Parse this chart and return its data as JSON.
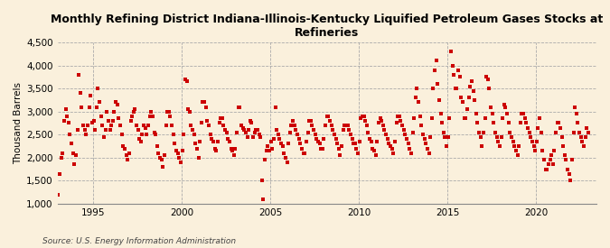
{
  "title": "Monthly Refining District Indiana-Illinois-Kentucky Liquified Petroleum Gases Stocks at\nRefineries",
  "ylabel": "Thousand Barrels",
  "source": "Source: U.S. Energy Information Administration",
  "ylim": [
    1000,
    4500
  ],
  "yticks": [
    1000,
    1500,
    2000,
    2500,
    3000,
    3500,
    4000,
    4500
  ],
  "background_color": "#FAF0DC",
  "marker_color": "#CC0000",
  "grid_color": "#AAAAAA",
  "x_years": [
    1993,
    1993,
    1993,
    1993,
    1993,
    1993,
    1993,
    1993,
    1993,
    1993,
    1993,
    1993,
    1994,
    1994,
    1994,
    1994,
    1994,
    1994,
    1994,
    1994,
    1994,
    1994,
    1994,
    1994,
    1995,
    1995,
    1995,
    1995,
    1995,
    1995,
    1995,
    1995,
    1995,
    1995,
    1995,
    1995,
    1996,
    1996,
    1996,
    1996,
    1996,
    1996,
    1996,
    1996,
    1996,
    1996,
    1996,
    1996,
    1997,
    1997,
    1997,
    1997,
    1997,
    1997,
    1997,
    1997,
    1997,
    1997,
    1997,
    1997,
    1998,
    1998,
    1998,
    1998,
    1998,
    1998,
    1998,
    1998,
    1998,
    1998,
    1998,
    1998,
    1999,
    1999,
    1999,
    1999,
    1999,
    1999,
    1999,
    1999,
    1999,
    1999,
    1999,
    1999,
    2000,
    2000,
    2000,
    2000,
    2000,
    2000,
    2000,
    2000,
    2000,
    2000,
    2000,
    2000,
    2001,
    2001,
    2001,
    2001,
    2001,
    2001,
    2001,
    2001,
    2001,
    2001,
    2001,
    2001,
    2002,
    2002,
    2002,
    2002,
    2002,
    2002,
    2002,
    2002,
    2002,
    2002,
    2002,
    2002,
    2003,
    2003,
    2003,
    2003,
    2003,
    2003,
    2003,
    2003,
    2003,
    2003,
    2003,
    2003,
    2004,
    2004,
    2004,
    2004,
    2004,
    2004,
    2004,
    2004,
    2004,
    2004,
    2004,
    2004,
    2005,
    2005,
    2005,
    2005,
    2005,
    2005,
    2005,
    2005,
    2005,
    2005,
    2005,
    2005,
    2006,
    2006,
    2006,
    2006,
    2006,
    2006,
    2006,
    2006,
    2006,
    2006,
    2006,
    2006,
    2007,
    2007,
    2007,
    2007,
    2007,
    2007,
    2007,
    2007,
    2007,
    2007,
    2007,
    2007,
    2008,
    2008,
    2008,
    2008,
    2008,
    2008,
    2008,
    2008,
    2008,
    2008,
    2008,
    2008,
    2009,
    2009,
    2009,
    2009,
    2009,
    2009,
    2009,
    2009,
    2009,
    2009,
    2009,
    2009,
    2010,
    2010,
    2010,
    2010,
    2010,
    2010,
    2010,
    2010,
    2010,
    2010,
    2010,
    2010,
    2011,
    2011,
    2011,
    2011,
    2011,
    2011,
    2011,
    2011,
    2011,
    2011,
    2011,
    2011,
    2012,
    2012,
    2012,
    2012,
    2012,
    2012,
    2012,
    2012,
    2012,
    2012,
    2012,
    2012,
    2013,
    2013,
    2013,
    2013,
    2013,
    2013,
    2013,
    2013,
    2013,
    2013,
    2013,
    2013,
    2014,
    2014,
    2014,
    2014,
    2014,
    2014,
    2014,
    2014,
    2014,
    2014,
    2014,
    2014,
    2015,
    2015,
    2015,
    2015,
    2015,
    2015,
    2015,
    2015,
    2015,
    2015,
    2015,
    2015,
    2016,
    2016,
    2016,
    2016,
    2016,
    2016,
    2016,
    2016,
    2016,
    2016,
    2016,
    2016,
    2017,
    2017,
    2017,
    2017,
    2017,
    2017,
    2017,
    2017,
    2017,
    2017,
    2017,
    2017,
    2018,
    2018,
    2018,
    2018,
    2018,
    2018,
    2018,
    2018,
    2018,
    2018,
    2018,
    2018,
    2019,
    2019,
    2019,
    2019,
    2019,
    2019,
    2019,
    2019,
    2019,
    2019,
    2019,
    2019,
    2020,
    2020,
    2020,
    2020,
    2020,
    2020,
    2020,
    2020,
    2020,
    2020,
    2020,
    2020,
    2021,
    2021,
    2021,
    2021,
    2021,
    2021,
    2021,
    2021,
    2021,
    2021,
    2021,
    2021,
    2022,
    2022,
    2022,
    2022,
    2022,
    2022,
    2022,
    2022,
    2022,
    2022,
    2022,
    2022
  ],
  "x_months": [
    1,
    2,
    3,
    4,
    5,
    6,
    7,
    8,
    9,
    10,
    11,
    12,
    1,
    2,
    3,
    4,
    5,
    6,
    7,
    8,
    9,
    10,
    11,
    12,
    1,
    2,
    3,
    4,
    5,
    6,
    7,
    8,
    9,
    10,
    11,
    12,
    1,
    2,
    3,
    4,
    5,
    6,
    7,
    8,
    9,
    10,
    11,
    12,
    1,
    2,
    3,
    4,
    5,
    6,
    7,
    8,
    9,
    10,
    11,
    12,
    1,
    2,
    3,
    4,
    5,
    6,
    7,
    8,
    9,
    10,
    11,
    12,
    1,
    2,
    3,
    4,
    5,
    6,
    7,
    8,
    9,
    10,
    11,
    12,
    1,
    2,
    3,
    4,
    5,
    6,
    7,
    8,
    9,
    10,
    11,
    12,
    1,
    2,
    3,
    4,
    5,
    6,
    7,
    8,
    9,
    10,
    11,
    12,
    1,
    2,
    3,
    4,
    5,
    6,
    7,
    8,
    9,
    10,
    11,
    12,
    1,
    2,
    3,
    4,
    5,
    6,
    7,
    8,
    9,
    10,
    11,
    12,
    1,
    2,
    3,
    4,
    5,
    6,
    7,
    8,
    9,
    10,
    11,
    12,
    1,
    2,
    3,
    4,
    5,
    6,
    7,
    8,
    9,
    10,
    11,
    12,
    1,
    2,
    3,
    4,
    5,
    6,
    7,
    8,
    9,
    10,
    11,
    12,
    1,
    2,
    3,
    4,
    5,
    6,
    7,
    8,
    9,
    10,
    11,
    12,
    1,
    2,
    3,
    4,
    5,
    6,
    7,
    8,
    9,
    10,
    11,
    12,
    1,
    2,
    3,
    4,
    5,
    6,
    7,
    8,
    9,
    10,
    11,
    12,
    1,
    2,
    3,
    4,
    5,
    6,
    7,
    8,
    9,
    10,
    11,
    12,
    1,
    2,
    3,
    4,
    5,
    6,
    7,
    8,
    9,
    10,
    11,
    12,
    1,
    2,
    3,
    4,
    5,
    6,
    7,
    8,
    9,
    10,
    11,
    12,
    1,
    2,
    3,
    4,
    5,
    6,
    7,
    8,
    9,
    10,
    11,
    12,
    1,
    2,
    3,
    4,
    5,
    6,
    7,
    8,
    9,
    10,
    11,
    12,
    1,
    2,
    3,
    4,
    5,
    6,
    7,
    8,
    9,
    10,
    11,
    12,
    1,
    2,
    3,
    4,
    5,
    6,
    7,
    8,
    9,
    10,
    11,
    12,
    1,
    2,
    3,
    4,
    5,
    6,
    7,
    8,
    9,
    10,
    11,
    12,
    1,
    2,
    3,
    4,
    5,
    6,
    7,
    8,
    9,
    10,
    11,
    12,
    1,
    2,
    3,
    4,
    5,
    6,
    7,
    8,
    9,
    10,
    11,
    12,
    1,
    2,
    3,
    4,
    5,
    6,
    7,
    8,
    9,
    10,
    11,
    12,
    1,
    2,
    3,
    4,
    5,
    6,
    7,
    8,
    9,
    10,
    11,
    12,
    1,
    2,
    3,
    4,
    5,
    6,
    7,
    8,
    9,
    10,
    11,
    12
  ],
  "values": [
    1200,
    1650,
    2000,
    2100,
    2800,
    3050,
    2900,
    2750,
    2500,
    2300,
    2100,
    1850,
    2050,
    2600,
    3800,
    3400,
    3100,
    2700,
    2600,
    2500,
    2700,
    3100,
    3350,
    2750,
    2800,
    2600,
    3100,
    3500,
    3200,
    2900,
    2700,
    2450,
    2600,
    3000,
    2800,
    2600,
    2700,
    2800,
    3000,
    3200,
    3150,
    2850,
    2700,
    2500,
    2250,
    2200,
    2050,
    1950,
    2100,
    2800,
    2900,
    3000,
    3050,
    2700,
    2600,
    2400,
    2350,
    2500,
    2700,
    2650,
    2500,
    2700,
    2900,
    3000,
    2900,
    2550,
    2500,
    2250,
    2100,
    2000,
    1950,
    1800,
    2050,
    2700,
    3000,
    3000,
    2900,
    2700,
    2500,
    2300,
    2150,
    2100,
    2000,
    1900,
    2150,
    2500,
    3700,
    3650,
    3050,
    3000,
    2700,
    2600,
    2500,
    2300,
    2200,
    2000,
    2350,
    2750,
    3200,
    3200,
    3100,
    2800,
    2700,
    2500,
    2400,
    2350,
    2200,
    2150,
    2350,
    2750,
    2850,
    2850,
    2700,
    2600,
    2550,
    2400,
    2350,
    2200,
    2150,
    2050,
    2200,
    2550,
    3100,
    3100,
    2700,
    2650,
    2600,
    2550,
    2450,
    2600,
    2800,
    2750,
    2450,
    2550,
    2600,
    2600,
    2500,
    2450,
    1500,
    1100,
    1950,
    2150,
    2250,
    2150,
    2350,
    2200,
    2400,
    3100,
    2600,
    2500,
    2400,
    2300,
    2250,
    2100,
    2000,
    1900,
    2300,
    2550,
    2700,
    2800,
    2700,
    2600,
    2500,
    2400,
    2300,
    2200,
    2100,
    2100,
    2350,
    2550,
    2800,
    2800,
    2700,
    2600,
    2500,
    2400,
    2350,
    2300,
    2200,
    2200,
    2400,
    2700,
    2900,
    2900,
    2800,
    2700,
    2600,
    2500,
    2400,
    2300,
    2200,
    2050,
    2250,
    2600,
    2700,
    2700,
    2700,
    2600,
    2500,
    2400,
    2300,
    2300,
    2200,
    2100,
    2350,
    2850,
    2900,
    2900,
    2800,
    2700,
    2550,
    2400,
    2350,
    2200,
    2150,
    2050,
    2350,
    2750,
    2850,
    2800,
    2700,
    2600,
    2500,
    2400,
    2300,
    2250,
    2200,
    2100,
    2350,
    2750,
    2900,
    2900,
    2800,
    2700,
    2600,
    2500,
    2400,
    2300,
    2200,
    2100,
    2550,
    2850,
    3300,
    3500,
    3200,
    2900,
    2700,
    2500,
    2400,
    2300,
    2200,
    2100,
    2450,
    2850,
    3500,
    3900,
    4100,
    3600,
    3250,
    2950,
    2750,
    2550,
    2450,
    2250,
    2450,
    2850,
    4300,
    4000,
    3800,
    3500,
    3500,
    3900,
    3750,
    3300,
    3200,
    2850,
    2850,
    3050,
    3300,
    3550,
    3650,
    3450,
    3250,
    2950,
    2750,
    2550,
    2450,
    2250,
    2550,
    2850,
    3750,
    3700,
    3500,
    3100,
    2950,
    2750,
    2550,
    2450,
    2350,
    2250,
    2450,
    2850,
    3150,
    3100,
    2950,
    2750,
    2550,
    2450,
    2350,
    2250,
    2150,
    2050,
    2250,
    2750,
    2950,
    2950,
    2850,
    2750,
    2650,
    2550,
    2450,
    2350,
    2250,
    2150,
    2350,
    2650,
    2850,
    2550,
    2150,
    1950,
    1750,
    1750,
    1850,
    1950,
    2050,
    1850,
    2150,
    2550,
    2750,
    2750,
    2650,
    2450,
    2250,
    2050,
    1950,
    1750,
    1650,
    1500,
    1950,
    2550,
    3100,
    2950,
    2750,
    2550,
    2450,
    2350,
    2250,
    2450,
    2650,
    2550
  ]
}
